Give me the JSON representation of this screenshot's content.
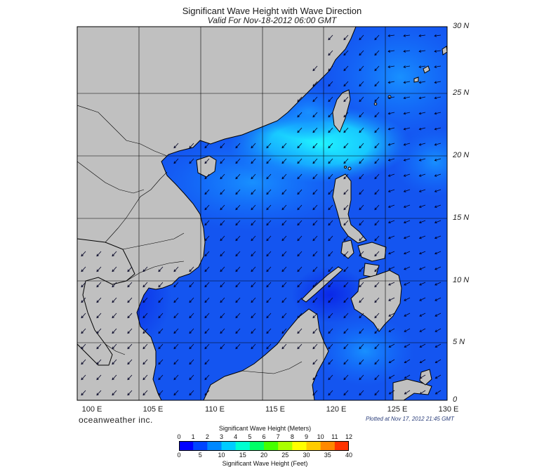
{
  "title": "Significant Wave Height with Wave Direction",
  "subtitle": "Valid For Nov-18-2012 06:00 GMT",
  "map": {
    "lon_range": [
      100,
      130
    ],
    "lat_range": [
      0,
      30
    ],
    "lat_labels": [
      "30 N",
      "25 N",
      "20 N",
      "15 N",
      "10 N",
      "5 N",
      "0"
    ],
    "lon_labels": [
      "100 E",
      "105 E",
      "110 E",
      "115 E",
      "120 E",
      "125 E",
      "130 E"
    ],
    "land_color": "#c0c0c0",
    "grid": true,
    "arrow_direction": "toward southwest (northeast monsoon swell)"
  },
  "brand": "oceanweather inc.",
  "plotted": "Plotted at Nov 17, 2012 21:45 GMT",
  "colorbar": {
    "title_meters": "Significant Wave Height (Meters)",
    "title_feet": "Significant Wave Height (Feet)",
    "meters_ticks": [
      "0",
      "1",
      "2",
      "3",
      "4",
      "5",
      "6",
      "7",
      "8",
      "9",
      "10",
      "11",
      "12"
    ],
    "feet_ticks": [
      "0",
      "5",
      "10",
      "15",
      "20",
      "25",
      "30",
      "35",
      "40"
    ],
    "colors": [
      "#0000ff",
      "#0044ff",
      "#0088ff",
      "#00ccff",
      "#00ffd0",
      "#00ff66",
      "#44ff00",
      "#aaff00",
      "#ffff00",
      "#ffcc00",
      "#ff8800",
      "#ff3300"
    ]
  }
}
